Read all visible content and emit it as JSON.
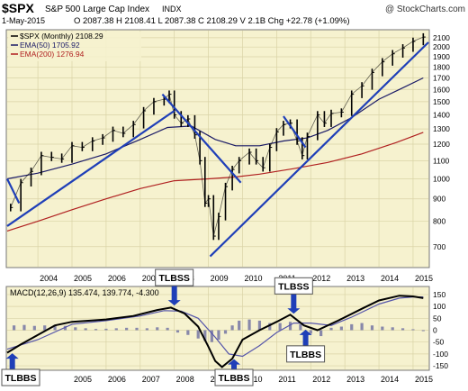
{
  "header": {
    "symbol": "$SPX",
    "name": "S&P 500 Large Cap Index",
    "exchange": "INDX",
    "watermark": "@ StockCharts.com",
    "date": "1-May-2015",
    "quote": "O 2087.38  H 2108.41  L 2087.38  C 2108.29  V 2.1B  Chg +22.78 (+1.09%)"
  },
  "colors": {
    "plot_bg": "#f6f2cf",
    "grid": "#d9d3a6",
    "price": "#000000",
    "ema50": "#1a1a66",
    "ema200": "#b02020",
    "trendline": "#1f3fb8",
    "macd": "#000000",
    "signal": "#5555aa",
    "hist": "#8888aa",
    "callout_arrow": "#1f3fb8"
  },
  "chart_data": [
    {
      "type": "line",
      "title": "$SPX S&P 500 Large Cap Index INDX",
      "scale": "log",
      "ylim": [
        630,
        2180
      ],
      "y_ticks": [
        700,
        800,
        900,
        1000,
        1100,
        1200,
        1300,
        1400,
        1500,
        1600,
        1700,
        1800,
        1900,
        2000,
        2100
      ],
      "x_ticks": [
        "2004",
        "2005",
        "2006",
        "2007",
        "2008",
        "2009",
        "2010",
        "2011",
        "2012",
        "2013",
        "2014",
        "2015"
      ],
      "x_tick_values": [
        2004,
        2005,
        2006,
        2007,
        2008,
        2009,
        2010,
        2011,
        2012,
        2013,
        2014,
        2015
      ],
      "xlim": [
        2003.1,
        2015.45
      ],
      "legend": [
        "$SPX (Monthly) 2108.29",
        "EMA(50) 1705.92",
        "EMA(200) 1276.94"
      ],
      "legend_placement": "top-left",
      "series": [
        {
          "name": "$SPX (Monthly) 2108.29",
          "kind": "bars",
          "x": [
            2003.2,
            2003.5,
            2003.8,
            2004.1,
            2004.4,
            2004.7,
            2005.0,
            2005.3,
            2005.6,
            2005.9,
            2006.2,
            2006.5,
            2006.8,
            2007.1,
            2007.4,
            2007.7,
            2007.85,
            2008.0,
            2008.2,
            2008.4,
            2008.6,
            2008.75,
            2008.9,
            2009.0,
            2009.15,
            2009.3,
            2009.5,
            2009.7,
            2009.9,
            2010.2,
            2010.4,
            2010.6,
            2010.8,
            2011.0,
            2011.2,
            2011.4,
            2011.6,
            2011.75,
            2011.9,
            2012.2,
            2012.4,
            2012.6,
            2012.9,
            2013.2,
            2013.5,
            2013.8,
            2014.1,
            2014.4,
            2014.7,
            2015.0,
            2015.3
          ],
          "values": [
            860,
            980,
            1040,
            1130,
            1120,
            1110,
            1190,
            1180,
            1220,
            1240,
            1290,
            1270,
            1330,
            1430,
            1500,
            1520,
            1560,
            1400,
            1340,
            1370,
            1260,
            1100,
            880,
            900,
            740,
            820,
            960,
            1050,
            1100,
            1150,
            1100,
            1060,
            1180,
            1280,
            1330,
            1340,
            1220,
            1130,
            1250,
            1400,
            1340,
            1410,
            1420,
            1560,
            1630,
            1750,
            1850,
            1930,
            1990,
            2060,
            2108
          ]
        },
        {
          "name": "EMA(50) 1705.92",
          "x": [
            2003.1,
            2004,
            2005,
            2006,
            2007,
            2007.8,
            2008.5,
            2009.2,
            2009.8,
            2010.5,
            2011.2,
            2011.9,
            2012.5,
            2013.2,
            2014,
            2014.6,
            2015.3
          ],
          "values": [
            1000,
            1030,
            1080,
            1140,
            1230,
            1310,
            1320,
            1230,
            1190,
            1190,
            1220,
            1240,
            1290,
            1380,
            1520,
            1600,
            1700
          ]
        },
        {
          "name": "EMA(200) 1276.94",
          "x": [
            2003.1,
            2004,
            2005,
            2006,
            2007,
            2008,
            2009,
            2009.8,
            2010.5,
            2011.5,
            2012.5,
            2013.5,
            2014.5,
            2015.3
          ],
          "values": [
            760,
            800,
            850,
            900,
            950,
            990,
            1000,
            1010,
            1025,
            1055,
            1090,
            1140,
            1210,
            1277
          ]
        }
      ],
      "trendlines": [
        {
          "x": [
            2003.1,
            2008.0
          ],
          "values": [
            780,
            1430
          ]
        },
        {
          "x": [
            2007.65,
            2009.95
          ],
          "values": [
            1560,
            980
          ]
        },
        {
          "x": [
            2009.05,
            2015.45
          ],
          "values": [
            665,
            2050
          ]
        },
        {
          "x": [
            2011.2,
            2011.85
          ],
          "values": [
            1390,
            1180
          ]
        },
        {
          "x": [
            2003.1,
            2003.45
          ],
          "values": [
            1000,
            880
          ]
        }
      ]
    },
    {
      "type": "line",
      "title": "MACD(12,26,9) 135.474, 139.774, -4.300",
      "legend": [
        "MACD(12,26,9) 135.474, 139.774, -4.300"
      ],
      "legend_placement": "top-left",
      "ylim": [
        -165,
        180
      ],
      "y_ticks": [
        150,
        100,
        50,
        0,
        -50,
        -100,
        -150
      ],
      "x_ticks": [
        "2005",
        "2006",
        "2007",
        "2008",
        "2009",
        "2010",
        "2011",
        "2012",
        "2013",
        "2014",
        "2015"
      ],
      "x_tick_values": [
        2005,
        2006,
        2007,
        2008,
        2009,
        2010,
        2011,
        2012,
        2013,
        2014,
        2015
      ],
      "xlim": [
        2003.1,
        2015.45
      ],
      "series": [
        {
          "name": "MACD",
          "x": [
            2003.1,
            2003.5,
            2004,
            2004.5,
            2005,
            2006,
            2006.8,
            2007.5,
            2007.9,
            2008.3,
            2008.7,
            2009.0,
            2009.2,
            2009.4,
            2009.7,
            2010.0,
            2010.5,
            2011.0,
            2011.4,
            2011.8,
            2012.2,
            2012.8,
            2013.5,
            2014.0,
            2014.6,
            2015.0,
            2015.3
          ],
          "values": [
            -95,
            -60,
            -20,
            20,
            35,
            45,
            60,
            85,
            95,
            70,
            15,
            -70,
            -130,
            -155,
            -120,
            -40,
            0,
            35,
            65,
            20,
            0,
            40,
            90,
            125,
            145,
            142,
            135
          ]
        },
        {
          "name": "Signal",
          "x": [
            2003.1,
            2004,
            2005,
            2006,
            2007,
            2007.7,
            2008.2,
            2008.7,
            2009.2,
            2009.6,
            2010.0,
            2010.5,
            2011.0,
            2011.5,
            2012.0,
            2012.6,
            2013.2,
            2014.0,
            2014.6,
            2015.0,
            2015.3
          ],
          "values": [
            -80,
            -40,
            25,
            40,
            60,
            82,
            80,
            50,
            -30,
            -100,
            -110,
            -65,
            -10,
            30,
            30,
            20,
            55,
            110,
            135,
            140,
            140
          ]
        }
      ],
      "histogram": {
        "x": [
          2003.3,
          2003.6,
          2003.9,
          2004.2,
          2004.5,
          2004.8,
          2005.1,
          2005.4,
          2005.7,
          2006.0,
          2006.3,
          2006.6,
          2006.9,
          2007.2,
          2007.5,
          2007.8,
          2008.1,
          2008.4,
          2008.7,
          2008.9,
          2009.1,
          2009.3,
          2009.5,
          2009.7,
          2009.9,
          2010.2,
          2010.5,
          2010.8,
          2011.1,
          2011.4,
          2011.7,
          2012.0,
          2012.3,
          2012.6,
          2012.9,
          2013.2,
          2013.5,
          2013.8,
          2014.1,
          2014.4,
          2014.7,
          2015.0,
          2015.3
        ],
        "values": [
          20,
          22,
          18,
          20,
          22,
          18,
          12,
          8,
          5,
          6,
          8,
          10,
          10,
          8,
          12,
          10,
          -10,
          -20,
          -35,
          -45,
          -50,
          -40,
          -15,
          20,
          40,
          45,
          40,
          30,
          30,
          35,
          25,
          -15,
          -25,
          10,
          15,
          25,
          30,
          20,
          15,
          12,
          8,
          4,
          -4
        ]
      },
      "annotations": [
        {
          "text": "TLBBS",
          "x": 2003.25,
          "direction": "up"
        },
        {
          "text": "TLBSS",
          "x": 2008.0,
          "direction": "down"
        },
        {
          "text": "TLBBS",
          "x": 2009.75,
          "direction": "up"
        },
        {
          "text": "TLBSS",
          "x": 2011.5,
          "direction": "down"
        },
        {
          "text": "TLBBS",
          "x": 2011.85,
          "direction": "up"
        }
      ]
    }
  ]
}
